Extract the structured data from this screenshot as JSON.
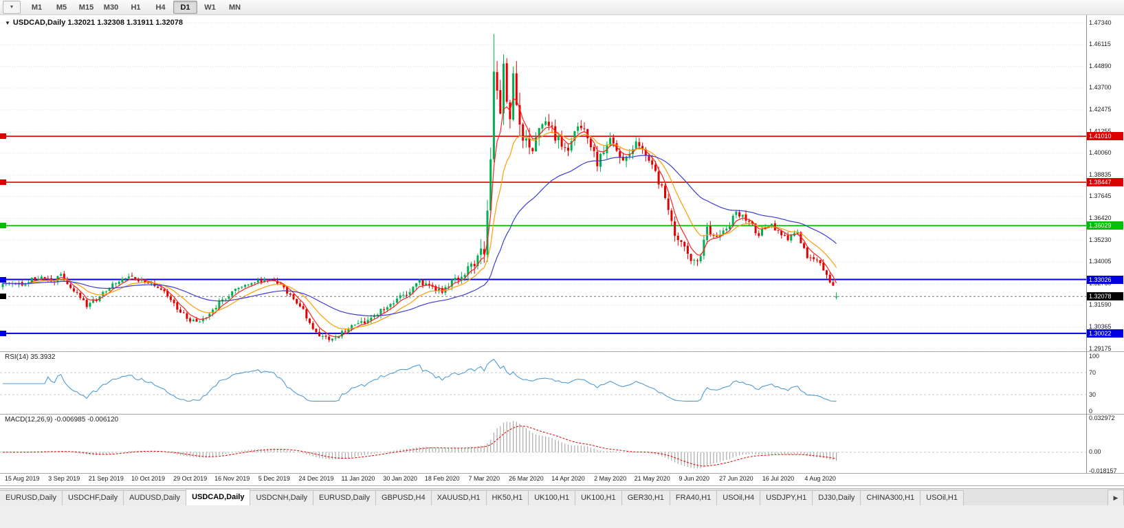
{
  "toolbar": {
    "dropdown_icon": "▼",
    "timeframes": [
      "M1",
      "M5",
      "M15",
      "M30",
      "H1",
      "H4",
      "D1",
      "W1",
      "MN"
    ],
    "active_timeframe": "D1"
  },
  "chart": {
    "marker_icon": "▼",
    "symbol_timeframe": "USDCAD,Daily",
    "ohlc_text": "1.32021 1.32308 1.31911 1.32078"
  },
  "chart_data": {
    "type": "candlestick",
    "symbol": "USDCAD",
    "timeframe": "Daily",
    "candle_count": 259,
    "last_candle": {
      "open": 1.32021,
      "high": 1.32308,
      "low": 1.31911,
      "close": 1.32078
    },
    "up_color": "#00b050",
    "down_color": "#e00000",
    "price_axis": {
      "min": 1.29175,
      "max": 1.4734,
      "ticks": [
        "1.47340",
        "1.46115",
        "1.44890",
        "1.43700",
        "1.42475",
        "1.41255",
        "1.40060",
        "1.38835",
        "1.37645",
        "1.36420",
        "1.35230",
        "1.34005",
        "1.32780",
        "1.31590",
        "1.30365",
        "1.29175"
      ]
    },
    "hlines": [
      {
        "price": 1.4101,
        "label": "1.41010",
        "color": "#dd0000",
        "width": 1.6
      },
      {
        "price": 1.38447,
        "label": "1.38447",
        "color": "#dd0000",
        "width": 1.6
      },
      {
        "price": 1.36029,
        "label": "1.36029",
        "color": "#00c000",
        "width": 1.6
      },
      {
        "price": 1.33026,
        "label": "1.33026",
        "color": "#0000dd",
        "width": 2
      },
      {
        "price": 1.30022,
        "label": "1.30022",
        "color": "#0000dd",
        "width": 2
      }
    ],
    "current_price": {
      "value": 1.32078,
      "label": "1.32078",
      "bg": "#000000"
    },
    "moving_averages": [
      {
        "name": "fast",
        "period": 5,
        "color": "#ff2020"
      },
      {
        "name": "medium",
        "period": 13,
        "color": "#ff9c00"
      },
      {
        "name": "slow",
        "period": 40,
        "color": "#3b3bd6"
      }
    ],
    "close_anchors": [
      [
        0,
        1.329
      ],
      [
        6,
        1.3275
      ],
      [
        11,
        1.3318
      ],
      [
        16,
        1.3288
      ],
      [
        18,
        1.3332
      ],
      [
        22,
        1.324
      ],
      [
        26,
        1.3158
      ],
      [
        30,
        1.3205
      ],
      [
        34,
        1.3272
      ],
      [
        39,
        1.3318
      ],
      [
        45,
        1.3292
      ],
      [
        50,
        1.3232
      ],
      [
        55,
        1.312
      ],
      [
        58,
        1.3072
      ],
      [
        61,
        1.3058
      ],
      [
        66,
        1.3155
      ],
      [
        71,
        1.3238
      ],
      [
        76,
        1.3272
      ],
      [
        81,
        1.3305
      ],
      [
        85,
        1.329
      ],
      [
        88,
        1.323
      ],
      [
        92,
        1.316
      ],
      [
        95,
        1.306
      ],
      [
        98,
        1.2995
      ],
      [
        101,
        1.2972
      ],
      [
        104,
        1.2988
      ],
      [
        107,
        1.303
      ],
      [
        110,
        1.3052
      ],
      [
        114,
        1.308
      ],
      [
        118,
        1.314
      ],
      [
        123,
        1.3205
      ],
      [
        126,
        1.324
      ],
      [
        129,
        1.329
      ],
      [
        132,
        1.3262
      ],
      [
        136,
        1.3242
      ],
      [
        139,
        1.3288
      ],
      [
        143,
        1.334
      ],
      [
        146,
        1.339
      ],
      [
        149,
        1.347
      ],
      [
        150,
        1.364
      ],
      [
        151,
        1.398
      ],
      [
        152,
        1.448
      ],
      [
        153,
        1.438
      ],
      [
        154,
        1.421
      ],
      [
        155,
        1.447
      ],
      [
        156,
        1.43
      ],
      [
        157,
        1.418
      ],
      [
        158,
        1.442
      ],
      [
        159,
        1.426
      ],
      [
        160,
        1.412
      ],
      [
        162,
        1.408
      ],
      [
        164,
        1.3985
      ],
      [
        166,
        1.413
      ],
      [
        168,
        1.4205
      ],
      [
        171,
        1.4085
      ],
      [
        175,
        1.403
      ],
      [
        178,
        1.4175
      ],
      [
        181,
        1.4085
      ],
      [
        184,
        1.396
      ],
      [
        188,
        1.4075
      ],
      [
        192,
        1.3985
      ],
      [
        196,
        1.4055
      ],
      [
        201,
        1.393
      ],
      [
        205,
        1.3775
      ],
      [
        208,
        1.3565
      ],
      [
        211,
        1.3475
      ],
      [
        214,
        1.3395
      ],
      [
        216,
        1.343
      ],
      [
        218,
        1.3585
      ],
      [
        221,
        1.3535
      ],
      [
        224,
        1.357
      ],
      [
        227,
        1.3678
      ],
      [
        231,
        1.3618
      ],
      [
        234,
        1.3548
      ],
      [
        237,
        1.3608
      ],
      [
        240,
        1.3578
      ],
      [
        243,
        1.3528
      ],
      [
        246,
        1.3558
      ],
      [
        249,
        1.3432
      ],
      [
        252,
        1.3408
      ],
      [
        253,
        1.3388
      ],
      [
        255,
        1.3328
      ],
      [
        257,
        1.3258
      ],
      [
        258,
        1.3208
      ]
    ],
    "volatility_anchors": [
      [
        0,
        0.0022
      ],
      [
        90,
        0.0024
      ],
      [
        140,
        0.0028
      ],
      [
        147,
        0.006
      ],
      [
        150,
        0.0085
      ],
      [
        158,
        0.0095
      ],
      [
        166,
        0.007
      ],
      [
        175,
        0.0055
      ],
      [
        190,
        0.0045
      ],
      [
        205,
        0.0045
      ],
      [
        214,
        0.004
      ],
      [
        227,
        0.003
      ],
      [
        258,
        0.0026
      ]
    ],
    "extremes": {
      "peak_index": 152,
      "peak_high": 1.4672,
      "trough_index": 101,
      "trough_low": 1.2953
    },
    "x_axis": {
      "start_index": 6,
      "step": 13,
      "labels": [
        "15 Aug 2019",
        "3 Sep 2019",
        "21 Sep 2019",
        "10 Oct 2019",
        "29 Oct 2019",
        "16 Nov 2019",
        "5 Dec 2019",
        "24 Dec 2019",
        "11 Jan 2020",
        "30 Jan 2020",
        "18 Feb 2020",
        "7 Mar 2020",
        "26 Mar 2020",
        "14 Apr 2020",
        "2 May 2020",
        "21 May 2020",
        "9 Jun 2020",
        "27 Jun 2020",
        "16 Jul 2020",
        "4 Aug 2020"
      ]
    }
  },
  "rsi": {
    "label": "RSI(14) 35.3932",
    "current": 35.3932,
    "range": [
      0,
      100
    ],
    "levels": [
      70,
      30
    ],
    "ticks": [
      "100",
      "70",
      "30",
      "0"
    ],
    "color": "#4f9bd5"
  },
  "macd": {
    "label": "MACD(12,26,9) -0.006985 -0.006120",
    "macd_value": -0.006985,
    "signal_value": -0.00612,
    "range": [
      -0.018157,
      0.032972
    ],
    "ticks": [
      "0.032972",
      "0.00",
      "-0.018157"
    ],
    "histogram_color": "#aaaaaa",
    "signal_color": "#e00000"
  },
  "tabbar": {
    "tabs": [
      "EURUSD,Daily",
      "USDCHF,Daily",
      "AUDUSD,Daily",
      "USDCAD,Daily",
      "USDCNH,Daily",
      "EURUSD,Daily",
      "GBPUSD,H4",
      "XAUUSD,H1",
      "HK50,H1",
      "UK100,H1",
      "UK100,H1",
      "GER30,H1",
      "FRA40,H1",
      "USOil,H4",
      "USDJPY,H1",
      "DJ30,Daily",
      "CHINA300,H1",
      "USOil,H1"
    ],
    "active_index": 3,
    "scroll_right_icon": "▶"
  }
}
